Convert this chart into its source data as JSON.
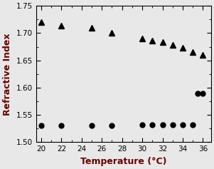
{
  "extraordinary_temp": [
    20,
    22,
    25,
    27,
    30,
    31,
    32,
    33,
    34,
    35,
    36
  ],
  "extraordinary_n": [
    1.72,
    1.714,
    1.71,
    1.7,
    1.69,
    1.686,
    1.683,
    1.678,
    1.673,
    1.665,
    1.66
  ],
  "ordinary_temp": [
    20,
    22,
    25,
    27,
    30,
    31,
    32,
    33,
    34,
    35,
    35.5,
    36
  ],
  "ordinary_n": [
    1.53,
    1.53,
    1.53,
    1.53,
    1.532,
    1.532,
    1.532,
    1.532,
    1.532,
    1.532,
    1.59,
    1.59
  ],
  "xlim": [
    19.5,
    36.8
  ],
  "ylim": [
    1.5,
    1.75
  ],
  "xticks": [
    20,
    22,
    24,
    26,
    28,
    30,
    32,
    34,
    36
  ],
  "yticks": [
    1.5,
    1.55,
    1.6,
    1.65,
    1.7,
    1.75
  ],
  "xlabel": "Temperature (°C)",
  "ylabel": "Refractive Index",
  "label_color": "#6b0000",
  "marker_color": "black",
  "bg_color": "#e8e8e8"
}
